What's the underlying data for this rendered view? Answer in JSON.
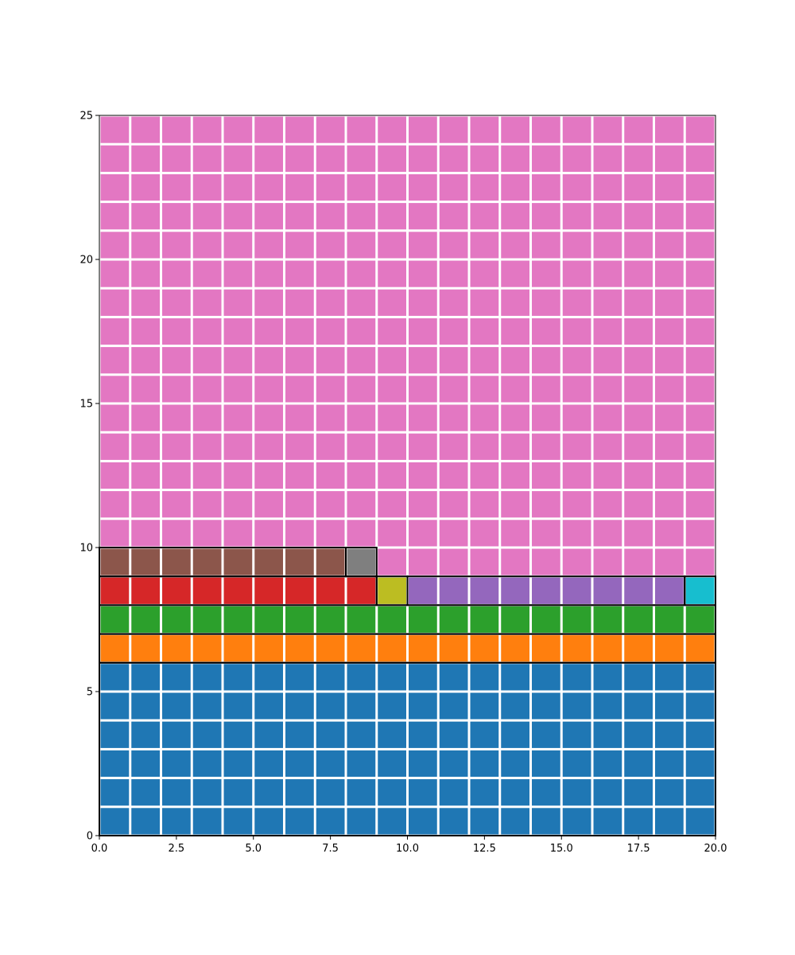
{
  "chart_data": {
    "type": "waffle",
    "grid": {
      "columns": 20,
      "rows": 25
    },
    "xlim": [
      0,
      20
    ],
    "ylim": [
      0,
      25
    ],
    "xticks": [
      "0.0",
      "2.5",
      "5.0",
      "7.5",
      "10.0",
      "12.5",
      "15.0",
      "17.5",
      "20.0"
    ],
    "yticks": [
      "0",
      "5",
      "10",
      "15",
      "20",
      "25"
    ],
    "fill_order": "row-wise from bottom-left, left to right",
    "series": [
      {
        "count": 120,
        "color": "#1f77b4"
      },
      {
        "count": 20,
        "color": "#ff7f0e"
      },
      {
        "count": 20,
        "color": "#2ca02c"
      },
      {
        "count": 9,
        "color": "#d62728"
      },
      {
        "count": 1,
        "color": "#bcbd22"
      },
      {
        "count": 9,
        "color": "#9467bd"
      },
      {
        "count": 1,
        "color": "#17becf"
      },
      {
        "count": 8,
        "color": "#8c564b"
      },
      {
        "count": 1,
        "color": "#7f7f7f"
      },
      {
        "count": 311,
        "color": "#e377c2"
      }
    ],
    "group_outlines": [
      {
        "series": [
          0
        ]
      },
      {
        "series": [
          1
        ]
      },
      {
        "series": [
          2
        ]
      },
      {
        "series": [
          3
        ]
      },
      {
        "series": [
          4
        ]
      },
      {
        "series": [
          5
        ]
      },
      {
        "series": [
          6
        ]
      },
      {
        "series": [
          7
        ]
      },
      {
        "series": [
          8
        ]
      }
    ]
  }
}
